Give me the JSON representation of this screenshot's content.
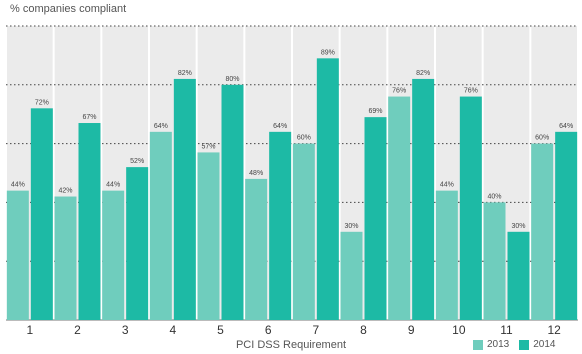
{
  "chart_data": {
    "type": "bar",
    "ylabel": "% companies compliant",
    "xlabel": "PCI DSS Requirement",
    "categories": [
      "1",
      "2",
      "3",
      "4",
      "5",
      "6",
      "7",
      "8",
      "9",
      "10",
      "11",
      "12"
    ],
    "ylim": [
      0,
      100
    ],
    "grid": true,
    "legend": "bottom-right",
    "series": [
      {
        "name": "2013",
        "color": "#6fcdbd",
        "values": [
          44,
          42,
          44,
          64,
          57,
          48,
          60,
          30,
          76,
          44,
          40,
          60
        ],
        "labels": [
          "44%",
          "42%",
          "44%",
          "64%",
          "57%",
          "48%",
          "60%",
          "30%",
          "76%",
          "44%",
          "40%",
          "60%"
        ]
      },
      {
        "name": "2014",
        "color": "#1dbaa5",
        "values": [
          72,
          67,
          52,
          82,
          80,
          64,
          89,
          69,
          82,
          76,
          30,
          64
        ],
        "labels": [
          "72%",
          "67%",
          "52%",
          "82%",
          "80%",
          "64%",
          "89%",
          "69%",
          "82%",
          "76%",
          "30%",
          "64%"
        ]
      }
    ]
  }
}
